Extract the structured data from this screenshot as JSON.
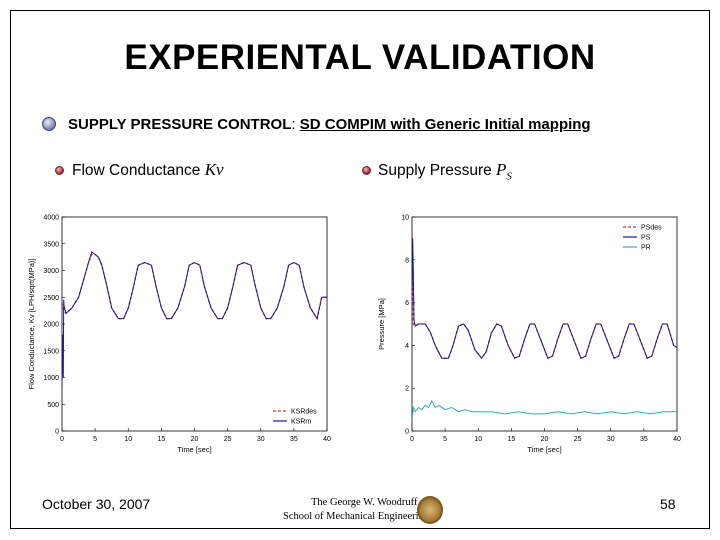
{
  "slide": {
    "title": "EXPERIENTAL VALIDATION",
    "bullet_main_bold": "SUPPLY PRESSURE CONTROL",
    "bullet_main_colon": ": ",
    "bullet_main_underlined": "SD COMPIM with Generic Initial mapping",
    "left_label_text": "Flow Conductance ",
    "left_label_var": "Kv",
    "right_label_text": "Supply Pressure ",
    "right_label_var": "P",
    "right_label_sub": "S",
    "footer_date": "October 30, 2007",
    "page_number": "58",
    "logo_line1": "The George W. Woodruff",
    "logo_line2": "School of Mechanical Engineering"
  },
  "chart_data": [
    {
      "type": "line",
      "xlabel": "Time [sec]",
      "ylabel": "Flow Conductance, Kv [LPH/sqrt(MPa)]",
      "xlim": [
        0,
        40
      ],
      "ylim": [
        0,
        4000
      ],
      "xticks": [
        "0",
        "5",
        "10",
        "15",
        "20",
        "25",
        "30",
        "35",
        "40"
      ],
      "yticks": [
        "0",
        "500",
        "1000",
        "1500",
        "2000",
        "2500",
        "3000",
        "3500",
        "4000"
      ],
      "grid": false,
      "legend_position": "bottom-right",
      "series": [
        {
          "name": "KSRdes",
          "color": "#e0302a",
          "dash": true,
          "x": [
            0,
            0.3,
            0.6,
            1.5,
            2.5,
            3.2,
            4.0,
            4.5,
            5.0,
            5.5,
            6.0,
            6.8,
            7.5,
            8.5,
            9.3,
            10.0,
            10.8,
            11.5,
            12.5,
            13.5,
            14.2,
            15.0,
            15.8,
            16.5,
            17.5,
            18.5,
            19.2,
            20.0,
            20.8,
            21.5,
            22.5,
            23.5,
            24.2,
            25.0,
            25.8,
            26.5,
            27.5,
            28.5,
            29.2,
            30.0,
            30.8,
            31.5,
            32.5,
            33.5,
            34.2,
            35.0,
            35.8,
            36.5,
            37.5,
            38.5,
            39.2,
            40.0
          ],
          "values": [
            2400,
            2250,
            2200,
            2300,
            2500,
            2800,
            3150,
            3300,
            3300,
            3250,
            3100,
            2700,
            2300,
            2100,
            2100,
            2300,
            2700,
            3100,
            3150,
            3100,
            2700,
            2300,
            2100,
            2100,
            2300,
            2700,
            3100,
            3150,
            3100,
            2700,
            2300,
            2100,
            2100,
            2300,
            2700,
            3100,
            3150,
            3100,
            2700,
            2300,
            2100,
            2100,
            2300,
            2700,
            3100,
            3150,
            3100,
            2700,
            2300,
            2100,
            2500,
            2500
          ]
        },
        {
          "name": "KSRm",
          "color": "#1a1a8c",
          "dash": false,
          "x": [
            0,
            0.1,
            0.2,
            0.25,
            0.3,
            0.6,
            1.5,
            2.5,
            3.2,
            4.0,
            4.5,
            5.0,
            5.5,
            6.0,
            6.8,
            7.5,
            8.5,
            9.3,
            10.0,
            10.8,
            11.5,
            12.5,
            13.5,
            14.2,
            15.0,
            15.8,
            16.5,
            17.5,
            18.5,
            19.2,
            20.0,
            20.8,
            21.5,
            22.5,
            23.5,
            24.2,
            25.0,
            25.8,
            26.5,
            27.5,
            28.5,
            29.2,
            30.0,
            30.8,
            31.5,
            32.5,
            33.5,
            34.2,
            35.0,
            35.8,
            36.5,
            37.5,
            38.5,
            39.2,
            40.0
          ],
          "values": [
            800,
            1800,
            1000,
            2450,
            2350,
            2200,
            2300,
            2500,
            2800,
            3150,
            3350,
            3300,
            3250,
            3100,
            2700,
            2300,
            2100,
            2100,
            2300,
            2700,
            3100,
            3150,
            3100,
            2700,
            2300,
            2100,
            2100,
            2300,
            2700,
            3100,
            3150,
            3100,
            2700,
            2300,
            2100,
            2100,
            2300,
            2700,
            3100,
            3150,
            3100,
            2700,
            2300,
            2100,
            2100,
            2300,
            2700,
            3100,
            3150,
            3100,
            2700,
            2300,
            2100,
            2500,
            2500
          ]
        }
      ]
    },
    {
      "type": "line",
      "xlabel": "Time [sec]",
      "ylabel": "Pressure [MPa]",
      "xlim": [
        0,
        40
      ],
      "ylim": [
        0,
        10
      ],
      "xticks": [
        "0",
        "5",
        "10",
        "15",
        "20",
        "25",
        "30",
        "35",
        "40"
      ],
      "yticks": [
        "0",
        "2",
        "4",
        "6",
        "8",
        "10"
      ],
      "grid": false,
      "legend_position": "top-right",
      "series": [
        {
          "name": "PSdes",
          "color": "#e0302a",
          "dash": true,
          "x": [
            0,
            0.2,
            0.5,
            1.0,
            2.0,
            2.8,
            3.5,
            4.5,
            5.5,
            6.2,
            7.0,
            7.8,
            8.5,
            9.5,
            10.5,
            11.2,
            12.0,
            12.8,
            13.5,
            14.5,
            15.5,
            16.2,
            17.0,
            17.8,
            18.5,
            19.5,
            20.5,
            21.2,
            22.0,
            22.8,
            23.5,
            24.5,
            25.5,
            26.2,
            27.0,
            27.8,
            28.5,
            29.5,
            30.5,
            31.2,
            32.0,
            32.8,
            33.5,
            34.5,
            35.5,
            36.2,
            37.0,
            37.8,
            38.5,
            39.5,
            40.0
          ],
          "values": [
            9.5,
            5.0,
            4.9,
            5.0,
            5.0,
            4.6,
            4.0,
            3.4,
            3.4,
            4.0,
            4.9,
            5.0,
            4.7,
            3.8,
            3.4,
            3.7,
            4.6,
            5.0,
            4.9,
            4.0,
            3.4,
            3.5,
            4.3,
            5.0,
            5.0,
            4.2,
            3.4,
            3.5,
            4.3,
            5.0,
            5.0,
            4.2,
            3.4,
            3.5,
            4.3,
            5.0,
            5.0,
            4.2,
            3.4,
            3.5,
            4.3,
            5.0,
            5.0,
            4.2,
            3.4,
            3.5,
            4.3,
            5.0,
            5.0,
            4.0,
            3.9
          ]
        },
        {
          "name": "PS",
          "color": "#1a1a8c",
          "dash": false,
          "x": [
            0,
            0.1,
            0.2,
            0.3,
            0.5,
            1.0,
            2.0,
            2.8,
            3.5,
            4.5,
            5.5,
            6.2,
            7.0,
            7.8,
            8.5,
            9.5,
            10.5,
            11.2,
            12.0,
            12.8,
            13.5,
            14.5,
            15.5,
            16.2,
            17.0,
            17.8,
            18.5,
            19.5,
            20.5,
            21.2,
            22.0,
            22.8,
            23.5,
            24.5,
            25.5,
            26.2,
            27.0,
            27.8,
            28.5,
            29.5,
            30.5,
            31.2,
            32.0,
            32.8,
            33.5,
            34.5,
            35.5,
            36.2,
            37.0,
            37.8,
            38.5,
            39.5,
            40.0
          ],
          "values": [
            6.0,
            9.0,
            7.5,
            5.2,
            4.9,
            5.0,
            5.0,
            4.6,
            4.0,
            3.4,
            3.4,
            4.0,
            4.9,
            5.0,
            4.7,
            3.8,
            3.4,
            3.7,
            4.6,
            5.0,
            4.9,
            4.0,
            3.4,
            3.5,
            4.3,
            5.0,
            5.0,
            4.2,
            3.4,
            3.5,
            4.3,
            5.0,
            5.0,
            4.2,
            3.4,
            3.5,
            4.3,
            5.0,
            5.0,
            4.2,
            3.4,
            3.5,
            4.3,
            5.0,
            5.0,
            4.2,
            3.4,
            3.5,
            4.3,
            5.0,
            5.0,
            4.0,
            3.9
          ]
        },
        {
          "name": "PR",
          "color": "#2bb0b0",
          "dash": false,
          "x": [
            0,
            0.2,
            0.5,
            1.0,
            1.5,
            2.0,
            2.5,
            3.0,
            3.5,
            4.0,
            5.0,
            6.0,
            7.0,
            8.0,
            9.0,
            10.0,
            12.0,
            14.0,
            16.0,
            18.0,
            20.0,
            22.0,
            24.0,
            26.0,
            28.0,
            30.0,
            32.0,
            34.0,
            36.0,
            38.0,
            40.0
          ],
          "values": [
            0.5,
            1.1,
            0.9,
            1.1,
            1.0,
            1.2,
            1.1,
            1.4,
            1.1,
            1.2,
            1.0,
            1.1,
            0.9,
            1.0,
            0.9,
            0.9,
            0.9,
            0.8,
            0.9,
            0.8,
            0.8,
            0.9,
            0.8,
            0.9,
            0.8,
            0.9,
            0.8,
            0.9,
            0.8,
            0.9,
            0.9
          ]
        }
      ]
    }
  ]
}
